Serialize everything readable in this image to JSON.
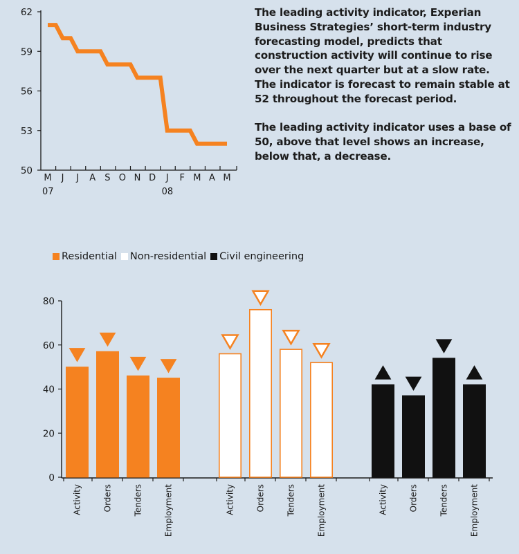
{
  "description": {
    "paragraph_1": "The leading activity indicator, Experian Business Strategies’ short-term industry forecasting model, predicts that construction activity will continue to rise over the next quarter but at a slow rate. The indicator is forecast to remain stable at 52 throughout the forecast period.",
    "paragraph_2": "The leading activity indicator uses a base of 50, above that level shows an increase, below that, a decrease."
  },
  "colors": {
    "residential": "#f58220",
    "non_residential": "#ffffff",
    "civil_engineering": "#111111",
    "axis": "#1a1a1a",
    "background": "#d6e1ec"
  },
  "chart_data": [
    {
      "type": "line",
      "x": [
        "M",
        "J",
        "J",
        "A",
        "S",
        "O",
        "N",
        "D",
        "J",
        "F",
        "M",
        "A",
        "M"
      ],
      "year_labels": [
        {
          "index": 0,
          "label": "07"
        },
        {
          "index": 8,
          "label": "08"
        }
      ],
      "series": [
        {
          "values": [
            61,
            60,
            59,
            59,
            58,
            58,
            57,
            57,
            53,
            53,
            52,
            52,
            52
          ]
        }
      ],
      "ylim": [
        50,
        62
      ],
      "yticks": [
        50,
        53,
        56,
        59,
        62
      ],
      "grid": false
    },
    {
      "type": "bar",
      "categories": [
        "Activity",
        "Orders",
        "Tenders",
        "Employment"
      ],
      "ylim": [
        0,
        80
      ],
      "yticks": [
        0,
        20,
        40,
        60,
        80
      ],
      "legend_position": "top-left",
      "grid": false,
      "series": [
        {
          "name": "Residential",
          "values": [
            50,
            57,
            46,
            45
          ],
          "trend": [
            "down",
            "down",
            "down",
            "down"
          ],
          "style": "filled-orange"
        },
        {
          "name": "Non-residential",
          "values": [
            56,
            76,
            58,
            52
          ],
          "trend": [
            "down",
            "down",
            "down",
            "down"
          ],
          "style": "white-outlined"
        },
        {
          "name": "Civil engineering",
          "values": [
            42,
            37,
            54,
            42
          ],
          "trend": [
            "up",
            "down",
            "down",
            "up"
          ],
          "style": "filled-black"
        }
      ]
    }
  ]
}
